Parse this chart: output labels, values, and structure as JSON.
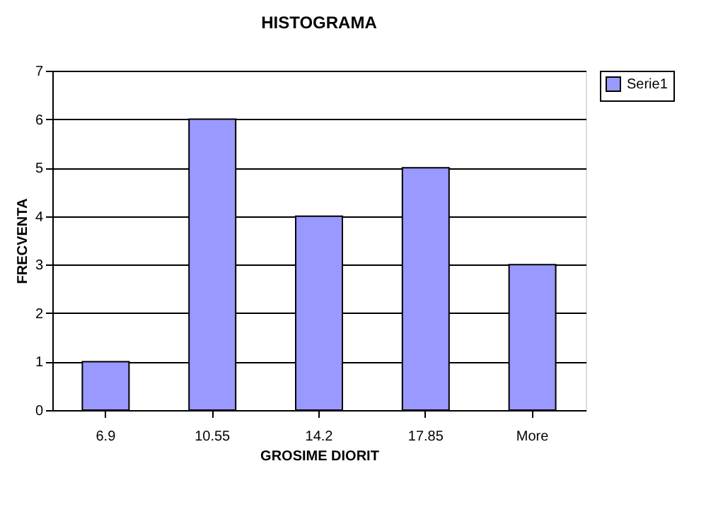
{
  "chart_data": {
    "type": "bar",
    "title": "HISTOGRAMA",
    "xlabel": "GROSIME DIORIT",
    "ylabel": "FRECVENTA",
    "categories": [
      "6.9",
      "10.55",
      "14.2",
      "17.85",
      "More"
    ],
    "series": [
      {
        "name": "Serie1",
        "color": "#9999ff",
        "values": [
          1,
          6,
          4,
          5,
          3
        ]
      }
    ],
    "ylim": [
      0,
      7
    ],
    "yticks": [
      0,
      1,
      2,
      3,
      4,
      5,
      6,
      7
    ],
    "grid": "y",
    "legend": "right"
  }
}
